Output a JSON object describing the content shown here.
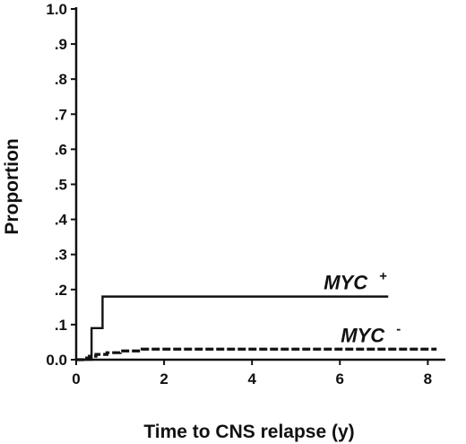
{
  "chart_data": {
    "type": "line",
    "step": true,
    "xlabel": "Time to CNS relapse (y)",
    "ylabel": "Proportion",
    "xlim": [
      0,
      8.4
    ],
    "ylim": [
      0,
      1.0
    ],
    "x_ticks": [
      0,
      2,
      4,
      6,
      8
    ],
    "x_tick_labels": [
      "0",
      "2",
      "4",
      "6",
      "8"
    ],
    "y_ticks": [
      0,
      0.1,
      0.2,
      0.3,
      0.4,
      0.5,
      0.6,
      0.7,
      0.8,
      0.9,
      1.0
    ],
    "y_tick_labels": [
      "0.0",
      ".1",
      ".2",
      ".3",
      ".4",
      ".5",
      ".6",
      ".7",
      ".8",
      ".9",
      "1.0"
    ],
    "grid": false,
    "series": [
      {
        "name": "MYC",
        "label_sign": "+",
        "style": "solid",
        "color": "#111111",
        "x": [
          0,
          0.35,
          0.6,
          7.1
        ],
        "y": [
          0,
          0.09,
          0.18,
          0.18
        ]
      },
      {
        "name": "MYC",
        "label_sign": "-",
        "style": "dashed",
        "color": "#111111",
        "x": [
          0,
          0.15,
          0.3,
          0.45,
          0.7,
          1.0,
          1.5,
          8.2
        ],
        "y": [
          0,
          0.005,
          0.01,
          0.015,
          0.02,
          0.025,
          0.03,
          0.03
        ]
      }
    ]
  }
}
